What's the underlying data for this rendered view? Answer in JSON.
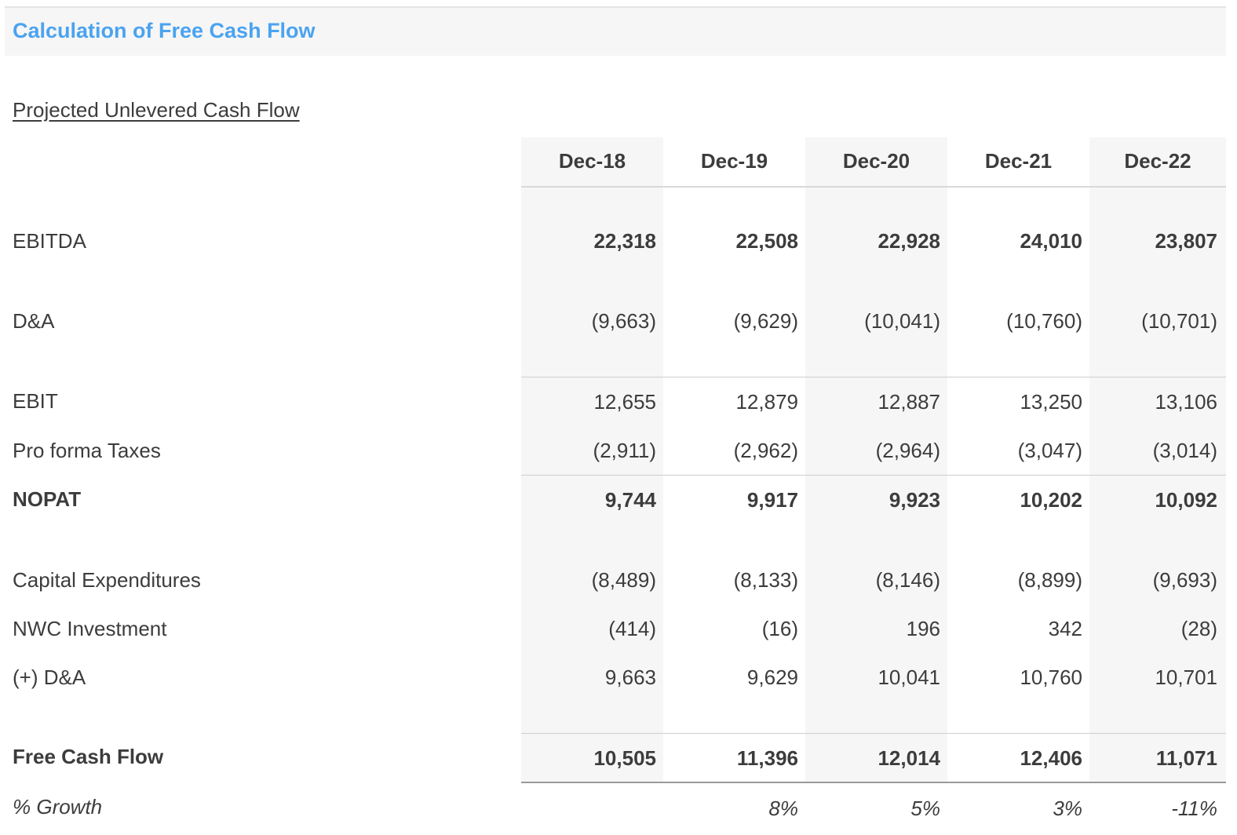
{
  "header": {
    "title": "Calculation of Free Cash Flow"
  },
  "section": {
    "subtitle": "Projected Unlevered Cash Flow"
  },
  "columns": [
    "Dec-18",
    "Dec-19",
    "Dec-20",
    "Dec-21",
    "Dec-22"
  ],
  "rows": [
    {
      "label": "EBITDA",
      "style": "bold-values",
      "values": [
        "22,318",
        "22,508",
        "22,928",
        "24,010",
        "23,807"
      ]
    },
    {
      "label": "D&A",
      "style": "normal",
      "values": [
        "(9,663)",
        "(9,629)",
        "(10,041)",
        "(10,760)",
        "(10,701)"
      ]
    },
    {
      "label": "EBIT",
      "style": "normal",
      "values": [
        "12,655",
        "12,879",
        "12,887",
        "13,250",
        "13,106"
      ]
    },
    {
      "label": "Pro forma Taxes",
      "style": "normal",
      "values": [
        "(2,911)",
        "(2,962)",
        "(2,964)",
        "(3,047)",
        "(3,014)"
      ]
    },
    {
      "label": "NOPAT",
      "style": "bold",
      "values": [
        "9,744",
        "9,917",
        "9,923",
        "10,202",
        "10,092"
      ]
    },
    {
      "label": "Capital Expenditures",
      "style": "normal",
      "values": [
        "(8,489)",
        "(8,133)",
        "(8,146)",
        "(8,899)",
        "(9,693)"
      ]
    },
    {
      "label": "NWC Investment",
      "style": "normal",
      "values": [
        "(414)",
        "(16)",
        "196",
        "342",
        "(28)"
      ]
    },
    {
      "label": "(+) D&A",
      "style": "normal",
      "values": [
        "9,663",
        "9,629",
        "10,041",
        "10,760",
        "10,701"
      ]
    },
    {
      "label": "Free Cash Flow",
      "style": "bold",
      "values": [
        "10,505",
        "11,396",
        "12,014",
        "12,406",
        "11,071"
      ]
    },
    {
      "label": "% Growth",
      "style": "italic",
      "values": [
        "",
        "8%",
        "5%",
        "3%",
        "-11%"
      ]
    }
  ]
}
